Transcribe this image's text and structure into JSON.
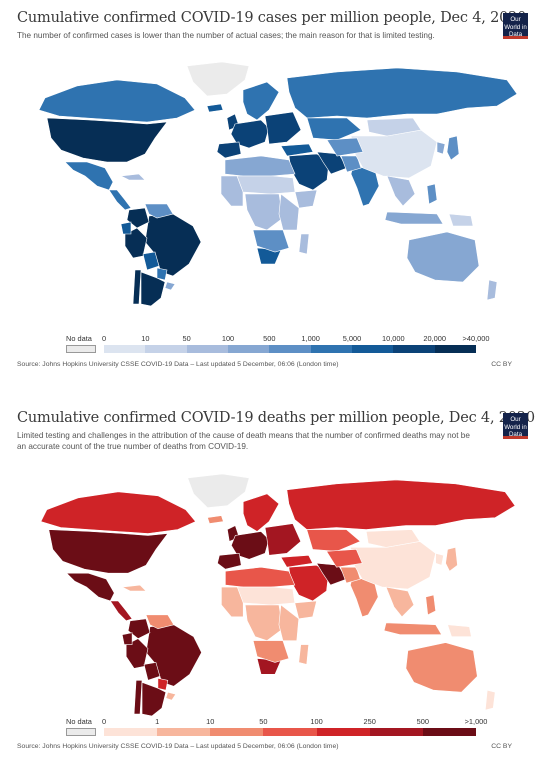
{
  "panels": [
    {
      "title": "Cumulative confirmed COVID-19 cases per million people, Dec 4, 2020",
      "subtitle": "The number of confirmed cases is lower than the number of actual cases; the main reason for that is limited testing.",
      "logo": "Our World in Data",
      "legend": {
        "no_data": "No data",
        "labels": [
          "0",
          "10",
          "50",
          "100",
          "500",
          "1,000",
          "5,000",
          "10,000",
          "20,000",
          ">40,000"
        ],
        "colors": [
          "#ebebeb",
          "#dce4f0",
          "#c5d2e8",
          "#a8bcdd",
          "#86a7d2",
          "#5d8fc5",
          "#2f73b0",
          "#135a98",
          "#0b4277",
          "#062e55"
        ]
      },
      "source": "Source: Johns Hopkins University CSSE COVID-19 Data – Last updated 5 December, 06:06 (London time)",
      "license": "CC BY",
      "map": {
        "countries": {
          "usa": 9,
          "canada": 6,
          "greenland": 0,
          "mexico": 6,
          "central_america": 6,
          "cuba": 3,
          "brazil": 9,
          "colombia": 9,
          "peru": 9,
          "venezuela": 5,
          "argentina": 9,
          "chile": 9,
          "bolivia": 7,
          "paraguay": 6,
          "uruguay": 4,
          "ecuador": 7,
          "uk": 8,
          "iceland": 7,
          "scandinavia": 6,
          "western_europe": 8,
          "eastern_europe": 8,
          "iberia": 8,
          "russia": 6,
          "kazakhstan": 6,
          "middle_east": 8,
          "iran": 8,
          "turkey": 7,
          "north_africa": 4,
          "sahel": 2,
          "west_africa": 3,
          "central_africa": 3,
          "east_africa": 3,
          "horn_of_africa": 3,
          "south_africa": 7,
          "southern_africa": 5,
          "madagascar": 3,
          "india": 6,
          "south_asia": 5,
          "china": 1,
          "mongolia": 2,
          "se_asia": 3,
          "indonesia": 4,
          "philippines": 5,
          "japan": 5,
          "korea": 4,
          "australia": 4,
          "new_zealand": 3,
          "papua": 2,
          "central_asia": 5
        }
      }
    },
    {
      "title": "Cumulative confirmed COVID-19 deaths per million people, Dec 4, 2020",
      "subtitle": "Limited testing and challenges in the attribution of the cause of death means that the number of confirmed deaths may not be an accurate count of the true number of deaths from COVID-19.",
      "logo": "Our World in Data",
      "legend": {
        "no_data": "No data",
        "labels": [
          "0",
          "1",
          "10",
          "50",
          "100",
          "250",
          "500",
          ">1,000"
        ],
        "colors": [
          "#ebebeb",
          "#fde3d8",
          "#f7b69d",
          "#f08c70",
          "#e8564a",
          "#cf2327",
          "#a31621",
          "#6b0d16"
        ]
      },
      "source": "Source: Johns Hopkins University CSSE COVID-19 Data – Last updated 5 December, 06:06 (London time)",
      "license": "CC BY",
      "map": {
        "countries": {
          "usa": 7,
          "canada": 5,
          "greenland": 0,
          "mexico": 7,
          "central_america": 6,
          "cuba": 2,
          "brazil": 7,
          "colombia": 7,
          "peru": 7,
          "venezuela": 3,
          "argentina": 7,
          "chile": 7,
          "bolivia": 7,
          "paraguay": 5,
          "uruguay": 2,
          "ecuador": 7,
          "uk": 7,
          "iceland": 3,
          "scandinavia": 5,
          "western_europe": 7,
          "eastern_europe": 6,
          "iberia": 7,
          "russia": 5,
          "kazakhstan": 4,
          "middle_east": 5,
          "iran": 7,
          "turkey": 5,
          "north_africa": 4,
          "sahel": 1,
          "west_africa": 2,
          "central_africa": 2,
          "east_africa": 2,
          "horn_of_africa": 2,
          "south_africa": 6,
          "southern_africa": 3,
          "madagascar": 2,
          "india": 3,
          "south_asia": 3,
          "china": 1,
          "mongolia": 1,
          "se_asia": 2,
          "indonesia": 3,
          "philippines": 3,
          "japan": 2,
          "korea": 1,
          "australia": 3,
          "new_zealand": 1,
          "papua": 1,
          "central_asia": 4
        }
      }
    }
  ]
}
